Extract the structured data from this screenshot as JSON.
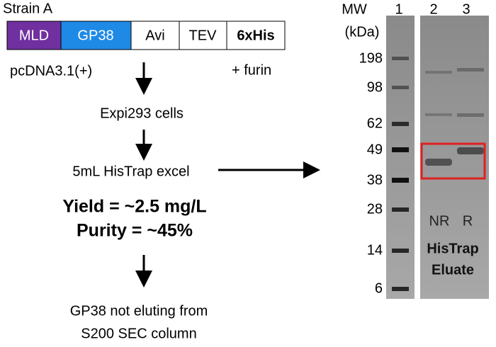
{
  "construct": {
    "strain": "Strain A",
    "segments": [
      "MLD",
      "GP38",
      "Avi",
      "TEV",
      "6xHis"
    ],
    "vector": "pcDNA3.1(+)",
    "cotransfection": "+ furin"
  },
  "workflow": {
    "steps": [
      "Expi293 cells",
      "5mL HisTrap excel"
    ],
    "yield": "Yield = ~2.5 mg/L",
    "purity": "Purity = ~45%",
    "outcome": [
      "GP38 not eluting from",
      "S200 SEC column"
    ]
  },
  "gel": {
    "mw_header": [
      "MW",
      "(kDa)"
    ],
    "lanes": [
      "1",
      "2",
      "3"
    ],
    "markers": [
      "198",
      "98",
      "62",
      "49",
      "38",
      "28",
      "14",
      "6"
    ],
    "lane_labels": [
      "NR",
      "R"
    ],
    "sample": [
      "HisTrap",
      "Eluate"
    ]
  }
}
